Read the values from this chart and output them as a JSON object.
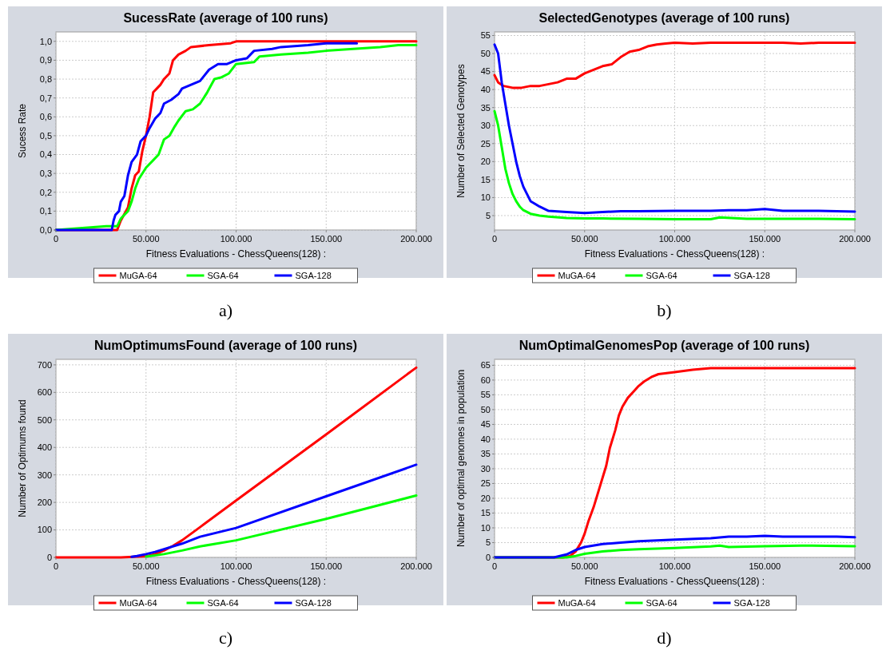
{
  "chart_data": [
    {
      "type": "line",
      "title": "SucessRate (average of 100 runs)",
      "xlabel": "Fitness Evaluations - ChessQueens(128) :",
      "ylabel": "Sucess Rate",
      "annotations": [
        "a)"
      ],
      "legend": "bottom",
      "grid": true,
      "xlim": [
        0,
        200000
      ],
      "xticks": [
        {
          "value": 0,
          "label": "0"
        },
        {
          "value": 50000,
          "label": "50.000"
        },
        {
          "value": 100000,
          "label": "100.000"
        },
        {
          "value": 150000,
          "label": "150.000"
        },
        {
          "value": 200000,
          "label": "200.000"
        }
      ],
      "ylim": [
        0,
        1.05
      ],
      "yticks": [
        {
          "value": 0,
          "label": "0,0"
        },
        {
          "value": 0.1,
          "label": "0,1"
        },
        {
          "value": 0.2,
          "label": "0,2"
        },
        {
          "value": 0.3,
          "label": "0,3"
        },
        {
          "value": 0.4,
          "label": "0,4"
        },
        {
          "value": 0.5,
          "label": "0,5"
        },
        {
          "value": 0.6,
          "label": "0,6"
        },
        {
          "value": 0.7,
          "label": "0,7"
        },
        {
          "value": 0.8,
          "label": "0,8"
        },
        {
          "value": 0.9,
          "label": "0,9"
        },
        {
          "value": 1,
          "label": "1,0"
        }
      ],
      "series": [
        {
          "name": "MuGA-64",
          "color": "#ff0000",
          "x": [
            0,
            34000,
            36000,
            40000,
            42000,
            44000,
            46000,
            48000,
            50000,
            52000,
            54000,
            56000,
            58000,
            60000,
            63000,
            65000,
            68000,
            72000,
            75000,
            85000,
            97000,
            100000,
            200000
          ],
          "values": [
            0,
            0,
            0.05,
            0.12,
            0.22,
            0.29,
            0.31,
            0.42,
            0.5,
            0.6,
            0.73,
            0.75,
            0.77,
            0.8,
            0.83,
            0.9,
            0.93,
            0.95,
            0.97,
            0.98,
            0.99,
            1,
            1
          ]
        },
        {
          "name": "SGA-64",
          "color": "#00ff00",
          "x": [
            0,
            28000,
            34000,
            36000,
            40000,
            42000,
            44000,
            46000,
            50000,
            54000,
            57000,
            60000,
            63000,
            66000,
            68000,
            72000,
            76000,
            80000,
            84000,
            88000,
            92000,
            96000,
            100000,
            110000,
            113000,
            125000,
            140000,
            150000,
            165000,
            180000,
            190000,
            200000
          ],
          "values": [
            0,
            0.02,
            0.02,
            0.06,
            0.1,
            0.15,
            0.22,
            0.27,
            0.33,
            0.37,
            0.4,
            0.48,
            0.5,
            0.55,
            0.58,
            0.63,
            0.64,
            0.67,
            0.73,
            0.8,
            0.81,
            0.83,
            0.88,
            0.89,
            0.92,
            0.93,
            0.94,
            0.95,
            0.96,
            0.97,
            0.98,
            0.98
          ]
        },
        {
          "name": "SGA-128",
          "color": "#0000ff",
          "x": [
            0,
            31000,
            32000,
            33000,
            35000,
            36000,
            38000,
            40000,
            42000,
            45000,
            47000,
            50000,
            52000,
            55000,
            58000,
            60000,
            64000,
            68000,
            70000,
            75000,
            80000,
            85000,
            90000,
            95000,
            100000,
            106000,
            110000,
            120000,
            125000,
            140000,
            150000,
            167000
          ],
          "values": [
            0,
            0,
            0.05,
            0.08,
            0.1,
            0.15,
            0.18,
            0.29,
            0.36,
            0.4,
            0.47,
            0.5,
            0.54,
            0.59,
            0.62,
            0.67,
            0.69,
            0.72,
            0.75,
            0.77,
            0.79,
            0.85,
            0.88,
            0.88,
            0.9,
            0.91,
            0.95,
            0.96,
            0.97,
            0.98,
            0.99,
            0.99
          ]
        }
      ]
    },
    {
      "type": "line",
      "title": "SelectedGenotypes (average of 100 runs)",
      "xlabel": "Fitness Evaluations - ChessQueens(128) :",
      "ylabel": "Number of Selected Genotypes",
      "annotations": [
        "b)"
      ],
      "legend": "bottom",
      "grid": true,
      "xlim": [
        0,
        200000
      ],
      "xticks": [
        {
          "value": 0,
          "label": "0"
        },
        {
          "value": 50000,
          "label": "50.000"
        },
        {
          "value": 100000,
          "label": "100.000"
        },
        {
          "value": 150000,
          "label": "150.000"
        },
        {
          "value": 200000,
          "label": "200.000"
        }
      ],
      "ylim": [
        1,
        56
      ],
      "yticks": [
        5,
        10,
        15,
        20,
        25,
        30,
        35,
        40,
        45,
        50,
        55
      ],
      "series": [
        {
          "name": "MuGA-64",
          "color": "#ff0000",
          "x": [
            0,
            2000,
            5000,
            10000,
            15000,
            20000,
            25000,
            30000,
            35000,
            40000,
            45000,
            50000,
            55000,
            60000,
            65000,
            70000,
            75000,
            80000,
            85000,
            90000,
            95000,
            100000,
            110000,
            120000,
            130000,
            140000,
            150000,
            160000,
            170000,
            180000,
            190000,
            200000
          ],
          "values": [
            44,
            42,
            41,
            40.5,
            40.5,
            41,
            41,
            41.5,
            42,
            43,
            43,
            44.5,
            45.5,
            46.5,
            47,
            49,
            50.5,
            51,
            52,
            52.5,
            52.8,
            53,
            52.8,
            53,
            53,
            53,
            53,
            53,
            52.8,
            53,
            53,
            53
          ]
        },
        {
          "name": "SGA-64",
          "color": "#00ff00",
          "x": [
            0,
            2000,
            4000,
            6000,
            8000,
            10000,
            12000,
            14000,
            16000,
            20000,
            25000,
            30000,
            40000,
            50000,
            60000,
            80000,
            100000,
            120000,
            125000,
            140000,
            160000,
            180000,
            200000
          ],
          "values": [
            34,
            30,
            24,
            18,
            14,
            11,
            9,
            7.5,
            6.5,
            5.5,
            5,
            4.7,
            4.3,
            4.2,
            4.2,
            4.1,
            4,
            4,
            4.5,
            4.1,
            4.1,
            4.1,
            4
          ]
        },
        {
          "name": "SGA-128",
          "color": "#0000ff",
          "x": [
            0,
            2000,
            4000,
            6000,
            8000,
            10000,
            12000,
            14000,
            16000,
            18000,
            20000,
            25000,
            30000,
            40000,
            50000,
            60000,
            70000,
            80000,
            100000,
            120000,
            130000,
            140000,
            150000,
            160000,
            180000,
            200000
          ],
          "values": [
            52.5,
            50,
            42,
            36,
            30,
            25,
            20,
            16,
            13,
            11,
            9,
            7.5,
            6.3,
            6,
            5.7,
            6,
            6.2,
            6.2,
            6.3,
            6.3,
            6.5,
            6.5,
            6.8,
            6.3,
            6.3,
            6.1
          ]
        }
      ]
    },
    {
      "type": "line",
      "title": "NumOptimumsFound (average of 100 runs)",
      "xlabel": "Fitness Evaluations - ChessQueens(128) :",
      "ylabel": "Number of Optimums found",
      "annotations": [
        "c)"
      ],
      "legend": "bottom",
      "grid": true,
      "xlim": [
        0,
        200000
      ],
      "xticks": [
        {
          "value": 0,
          "label": "0"
        },
        {
          "value": 50000,
          "label": "50.000"
        },
        {
          "value": 100000,
          "label": "100.000"
        },
        {
          "value": 150000,
          "label": "150.000"
        },
        {
          "value": 200000,
          "label": "200.000"
        }
      ],
      "ylim": [
        0,
        720
      ],
      "yticks": [
        0,
        100,
        200,
        300,
        400,
        500,
        600,
        700
      ],
      "series": [
        {
          "name": "MuGA-64",
          "color": "#ff0000",
          "x": [
            0,
            36000,
            50000,
            55000,
            60000,
            65000,
            70000,
            80000,
            100000,
            150000,
            200000
          ],
          "values": [
            0,
            0,
            4,
            12,
            25,
            42,
            62,
            110,
            207,
            447,
            690
          ]
        },
        {
          "name": "SGA-64",
          "color": "#00ff00",
          "x": [
            50000,
            60000,
            70000,
            80000,
            100000,
            150000,
            200000
          ],
          "values": [
            3,
            12,
            25,
            40,
            62,
            140,
            225
          ]
        },
        {
          "name": "SGA-128",
          "color": "#0000ff",
          "x": [
            42000,
            45000,
            50000,
            55000,
            60000,
            70000,
            80000,
            100000,
            150000,
            200000
          ],
          "values": [
            2,
            5,
            12,
            20,
            30,
            50,
            75,
            107,
            222,
            337
          ]
        }
      ]
    },
    {
      "type": "line",
      "title": "NumOptimalGenomesPop (average of 100 runs)",
      "xlabel": "Fitness Evaluations - ChessQueens(128) :",
      "ylabel": "Number of optimal genomes in population",
      "annotations": [
        "d)"
      ],
      "legend": "bottom",
      "grid": true,
      "xlim": [
        0,
        200000
      ],
      "xticks": [
        {
          "value": 0,
          "label": "0"
        },
        {
          "value": 50000,
          "label": "50.000"
        },
        {
          "value": 100000,
          "label": "100.000"
        },
        {
          "value": 150000,
          "label": "150.000"
        },
        {
          "value": 200000,
          "label": "200.000"
        }
      ],
      "ylim": [
        0,
        67
      ],
      "yticks": [
        0,
        5,
        10,
        15,
        20,
        25,
        30,
        35,
        40,
        45,
        50,
        55,
        60,
        65
      ],
      "series": [
        {
          "name": "MuGA-64",
          "color": "#ff0000",
          "x": [
            0,
            38000,
            42000,
            45000,
            48000,
            50000,
            52000,
            55000,
            58000,
            60000,
            62000,
            64000,
            67000,
            69000,
            71000,
            74000,
            77000,
            80000,
            83000,
            87000,
            91000,
            100000,
            110000,
            120000,
            200000
          ],
          "values": [
            0,
            0,
            0.5,
            2,
            5,
            8,
            12,
            17,
            23,
            27,
            31,
            37,
            43,
            48,
            51,
            54,
            56,
            58,
            59.5,
            61,
            62,
            62.7,
            63.5,
            64,
            64
          ]
        },
        {
          "name": "SGA-64",
          "color": "#00ff00",
          "x": [
            0,
            40000,
            45000,
            50000,
            60000,
            70000,
            80000,
            100000,
            120000,
            125000,
            130000,
            150000,
            170000,
            200000
          ],
          "values": [
            0,
            0,
            0.5,
            1.2,
            2,
            2.5,
            2.8,
            3.2,
            3.7,
            4,
            3.5,
            3.8,
            4,
            3.8
          ]
        },
        {
          "name": "SGA-128",
          "color": "#0000ff",
          "x": [
            0,
            33000,
            40000,
            45000,
            50000,
            60000,
            70000,
            80000,
            100000,
            120000,
            130000,
            140000,
            150000,
            160000,
            180000,
            190000,
            200000
          ],
          "values": [
            0,
            0,
            1,
            2.5,
            3.5,
            4.5,
            5,
            5.5,
            6,
            6.5,
            7,
            7,
            7.3,
            7,
            7,
            7,
            6.8
          ]
        }
      ]
    }
  ]
}
